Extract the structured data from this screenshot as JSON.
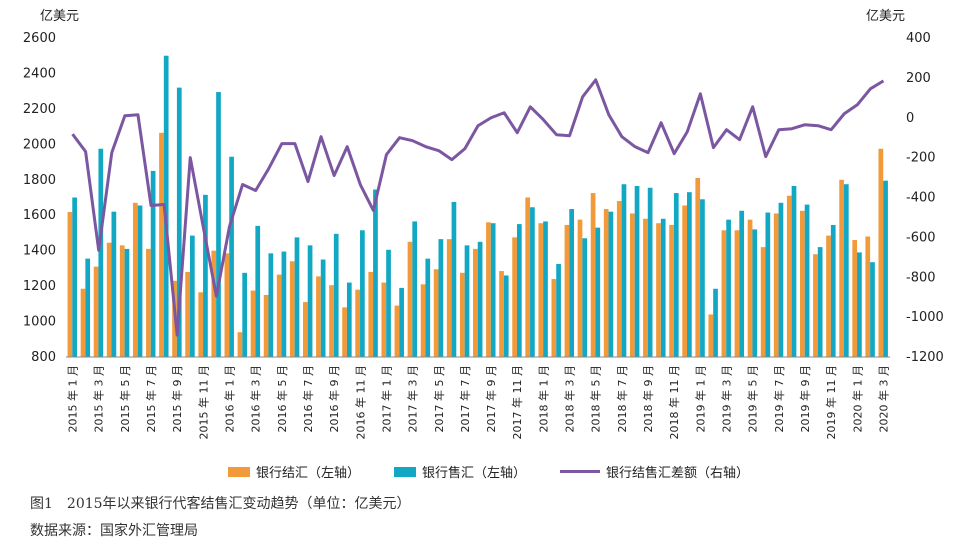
{
  "caption": {
    "title": "图1　2015年以来银行代客结售汇变动趋势（单位：亿美元）",
    "source": "数据来源：国家外汇管理局"
  },
  "chart_data": {
    "type": "bar",
    "left_axis": {
      "unit": "亿美元",
      "min": 800,
      "max": 2600,
      "step": 200
    },
    "right_axis": {
      "unit": "亿美元",
      "min": -1200,
      "max": 400,
      "step": 200
    },
    "categories": [
      "2015年1月",
      "2015年2月",
      "2015年3月",
      "2015年4月",
      "2015年5月",
      "2015年6月",
      "2015年7月",
      "2015年8月",
      "2015年9月",
      "2015年10月",
      "2015年11月",
      "2015年12月",
      "2016年1月",
      "2016年2月",
      "2016年3月",
      "2016年4月",
      "2016年5月",
      "2016年6月",
      "2016年7月",
      "2016年8月",
      "2016年9月",
      "2016年10月",
      "2016年11月",
      "2016年12月",
      "2017年1月",
      "2017年2月",
      "2017年3月",
      "2017年4月",
      "2017年5月",
      "2017年6月",
      "2017年7月",
      "2017年8月",
      "2017年9月",
      "2017年10月",
      "2017年11月",
      "2017年12月",
      "2018年1月",
      "2018年2月",
      "2018年3月",
      "2018年4月",
      "2018年5月",
      "2018年6月",
      "2018年7月",
      "2018年8月",
      "2018年9月",
      "2018年10月",
      "2018年11月",
      "2018年12月",
      "2019年1月",
      "2019年2月",
      "2019年3月",
      "2019年4月",
      "2019年5月",
      "2019年6月",
      "2019年7月",
      "2019年8月",
      "2019年9月",
      "2019年10月",
      "2019年11月",
      "2019年12月",
      "2020年1月",
      "2020年2月",
      "2020年3月"
    ],
    "tick_labels": [
      "2015 年 1 月",
      "2015 年 3 月",
      "2015 年 5 月",
      "2015 年 7 月",
      "2015 年 9 月",
      "2015 年 11 月",
      "2016 年 1 月",
      "2016 年 3 月",
      "2016 年 5 月",
      "2016 年 7 月",
      "2016 年 9 月",
      "2016 年 11 月",
      "2017 年 1 月",
      "2017 年 3 月",
      "2017 年 5 月",
      "2017 年 7 月",
      "2017 年 9 月",
      "2017 年 11 月",
      "2018 年 1 月",
      "2018 年 3 月",
      "2018 年 5 月",
      "2018 年 7 月",
      "2018 年 9 月",
      "2018 年 11 月",
      "2019 年 1 月",
      "2019 年 3 月",
      "2019 年 5 月",
      "2019 年 7 月",
      "2019 年 9 月",
      "2019 年 11 月",
      "2020 年 1 月",
      "2020 年 3 月"
    ],
    "series": [
      {
        "name": "银行结汇（左轴）",
        "type": "bar",
        "axis": "left",
        "color": "#F29A3A",
        "values": [
          1618,
          1185,
          1310,
          1445,
          1430,
          1670,
          1410,
          2065,
          1230,
          1280,
          1165,
          1400,
          1385,
          940,
          1175,
          1150,
          1265,
          1340,
          1110,
          1255,
          1205,
          1080,
          1180,
          1280,
          1220,
          1090,
          1450,
          1210,
          1295,
          1465,
          1275,
          1410,
          1560,
          1285,
          1475,
          1700,
          1555,
          1240,
          1545,
          1575,
          1725,
          1635,
          1680,
          1610,
          1580,
          1555,
          1545,
          1655,
          1810,
          1040,
          1515,
          1515,
          1575,
          1420,
          1610,
          1710,
          1625,
          1380,
          1485,
          1800,
          1460,
          1480,
          1975
        ]
      },
      {
        "name": "银行售汇（左轴）",
        "type": "bar",
        "axis": "left",
        "color": "#12A8C4",
        "values": [
          1700,
          1355,
          1975,
          1620,
          1410,
          1655,
          1850,
          2500,
          2320,
          1485,
          1715,
          2295,
          1930,
          1275,
          1540,
          1385,
          1395,
          1475,
          1430,
          1350,
          1495,
          1220,
          1515,
          1745,
          1405,
          1190,
          1565,
          1355,
          1465,
          1675,
          1430,
          1450,
          1555,
          1260,
          1550,
          1645,
          1565,
          1325,
          1635,
          1470,
          1530,
          1620,
          1775,
          1765,
          1755,
          1580,
          1725,
          1730,
          1690,
          1185,
          1575,
          1625,
          1520,
          1615,
          1670,
          1765,
          1660,
          1420,
          1545,
          1775,
          1390,
          1335,
          1795
        ]
      },
      {
        "name": "银行结售汇差额（右轴）",
        "type": "line",
        "axis": "right",
        "color": "#7B57A2",
        "values": [
          -82,
          -170,
          -665,
          -175,
          10,
          15,
          -440,
          -435,
          -1090,
          -200,
          -550,
          -895,
          -545,
          -335,
          -365,
          -255,
          -130,
          -130,
          -320,
          -95,
          -290,
          -145,
          -335,
          -465,
          -185,
          -100,
          -115,
          -145,
          -165,
          -210,
          -155,
          -40,
          0,
          25,
          -75,
          55,
          -10,
          -85,
          -90,
          105,
          190,
          15,
          -95,
          -145,
          -175,
          -25,
          -180,
          -70,
          120,
          -150,
          -60,
          -110,
          55,
          -195,
          -60,
          -55,
          -35,
          -40,
          -60,
          20,
          65,
          145,
          185
        ]
      }
    ],
    "legend_position": "bottom",
    "grid": false
  }
}
